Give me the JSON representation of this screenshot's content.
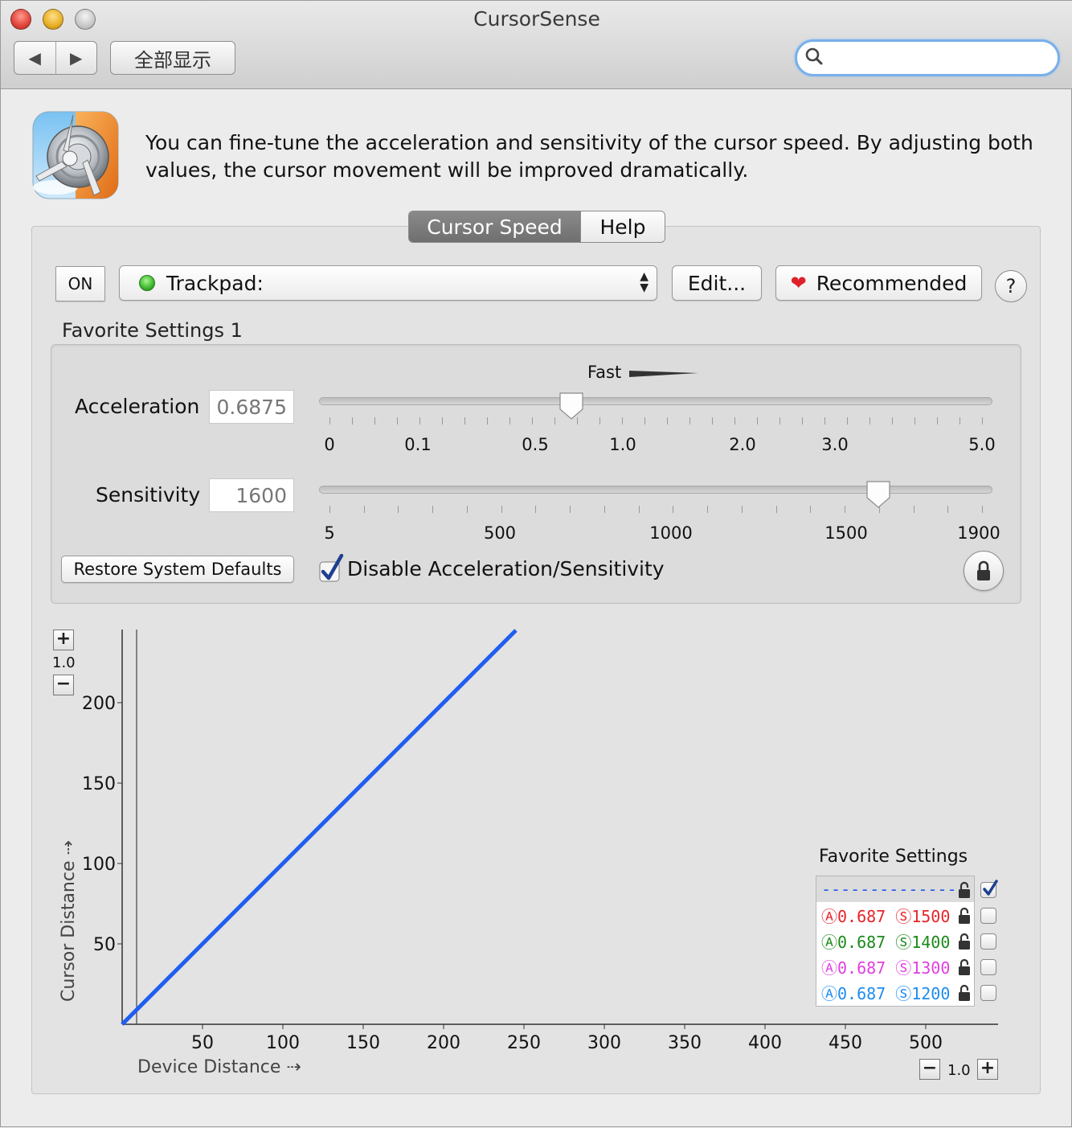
{
  "window": {
    "title": "CursorSense",
    "show_all_label": "全部显示",
    "back_glyph": "◀",
    "forward_glyph": "▶",
    "search": {
      "value": "",
      "placeholder": ""
    }
  },
  "header": {
    "icon": "cursorsense-app-icon",
    "description": "You can fine-tune the acceleration and sensitivity of the cursor speed. By adjusting both values, the cursor movement will be improved dramatically."
  },
  "tabs": [
    {
      "label": "Cursor Speed",
      "active": true
    },
    {
      "label": "Help",
      "active": false
    }
  ],
  "toolbar": {
    "on_label": "ON",
    "device_label": "Trackpad:",
    "edit_label": "Edit...",
    "recommended_label": "Recommended",
    "help_label": "?"
  },
  "favorite": {
    "title": "Favorite Settings 1",
    "fast_label": "Fast",
    "acceleration": {
      "label": "Acceleration",
      "value": "0.6875",
      "ticks": [
        "0",
        "0.1",
        "0.5",
        "1.0",
        "2.0",
        "3.0",
        "5.0"
      ],
      "position_fraction": 0.375
    },
    "sensitivity": {
      "label": "Sensitivity",
      "value": "1600",
      "ticks": [
        "5",
        "500",
        "1000",
        "1500",
        "1900"
      ],
      "position_fraction": 0.83
    },
    "restore_label": "Restore System Defaults",
    "disable_label": "Disable Acceleration/Sensitivity",
    "disable_checked": true
  },
  "graph": {
    "zoom_y": "1.0",
    "zoom_x": "1.0",
    "zoom_plus": "+",
    "zoom_minus": "−",
    "xlabel": "Device Distance ⇢",
    "ylabel": "Cursor Distance ⇢",
    "chart_data": {
      "type": "line",
      "x_ticks": [
        50,
        100,
        150,
        200,
        250,
        300,
        350,
        400,
        450,
        500
      ],
      "y_ticks": [
        50,
        100,
        150,
        200
      ],
      "xlim": [
        0,
        545
      ],
      "ylim": [
        0,
        245
      ],
      "series": [
        {
          "color": "#1f5ef0",
          "points": [
            [
              0,
              0
            ],
            [
              245,
              245
            ]
          ]
        }
      ]
    },
    "legend": {
      "title": "Favorite Settings",
      "rows": [
        {
          "text": "--------------",
          "color": "#2358e8",
          "checked": true,
          "selected": true
        },
        {
          "a": "Ⓐ0.687",
          "s": "Ⓢ1500",
          "color": "#e8242a",
          "checked": false
        },
        {
          "a": "Ⓐ0.687",
          "s": "Ⓢ1400",
          "color": "#1a8a1a",
          "checked": false
        },
        {
          "a": "Ⓐ0.687",
          "s": "Ⓢ1300",
          "color": "#e040e0",
          "checked": false
        },
        {
          "a": "Ⓐ0.687",
          "s": "Ⓢ1200",
          "color": "#1e8cf0",
          "checked": false
        }
      ]
    }
  }
}
